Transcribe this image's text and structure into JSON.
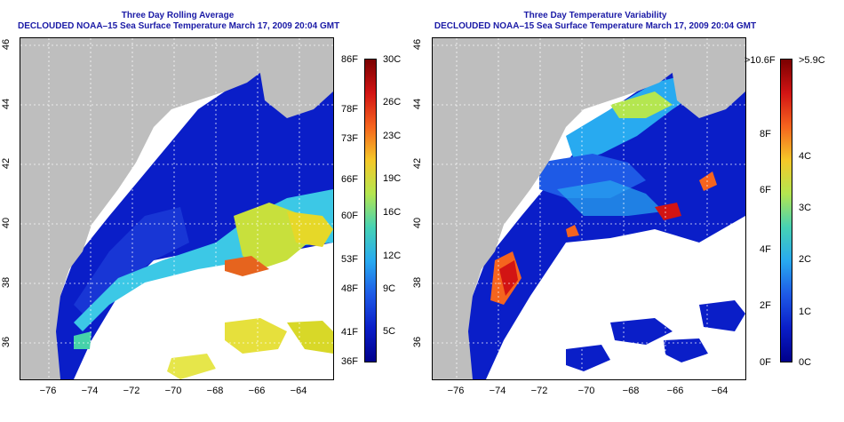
{
  "left_panel": {
    "title_line1": "Three Day Rolling Average",
    "title_line2": "DECLOUDED NOAA–15 Sea Surface Temperature March 17, 2009 20:04 GMT",
    "lon_ticks": [
      "−76",
      "−74",
      "−72",
      "−70",
      "−68",
      "−66",
      "−64"
    ],
    "lat_ticks": [
      "46",
      "44",
      "42",
      "40",
      "38",
      "36"
    ],
    "colorbar_f": [
      "86F",
      "78F",
      "73F",
      "66F",
      "60F",
      "53F",
      "48F",
      "41F",
      "36F"
    ],
    "colorbar_c": [
      "30C",
      "26C",
      "23C",
      "19C",
      "16C",
      "12C",
      "9C",
      "5C"
    ]
  },
  "right_panel": {
    "title_line1": "Three Day Temperature Variability",
    "title_line2": "DECLOUDED NOAA–15 Sea Surface Temperature March 17, 2009 20:04 GMT",
    "lon_ticks": [
      "−76",
      "−74",
      "−72",
      "−70",
      "−68",
      "−66",
      "−64"
    ],
    "lat_ticks": [
      "46",
      "44",
      "42",
      "40",
      "38",
      "36"
    ],
    "colorbar_f": [
      ">10.6F",
      "8F",
      "6F",
      "4F",
      "2F",
      "0F"
    ],
    "colorbar_c": [
      ">5.9C",
      "4C",
      "3C",
      "2C",
      "1C",
      "0C"
    ]
  },
  "colors": {
    "land": "#bebebe",
    "deep_blue": "#0a1ec8",
    "title": "#1a1aa6"
  }
}
